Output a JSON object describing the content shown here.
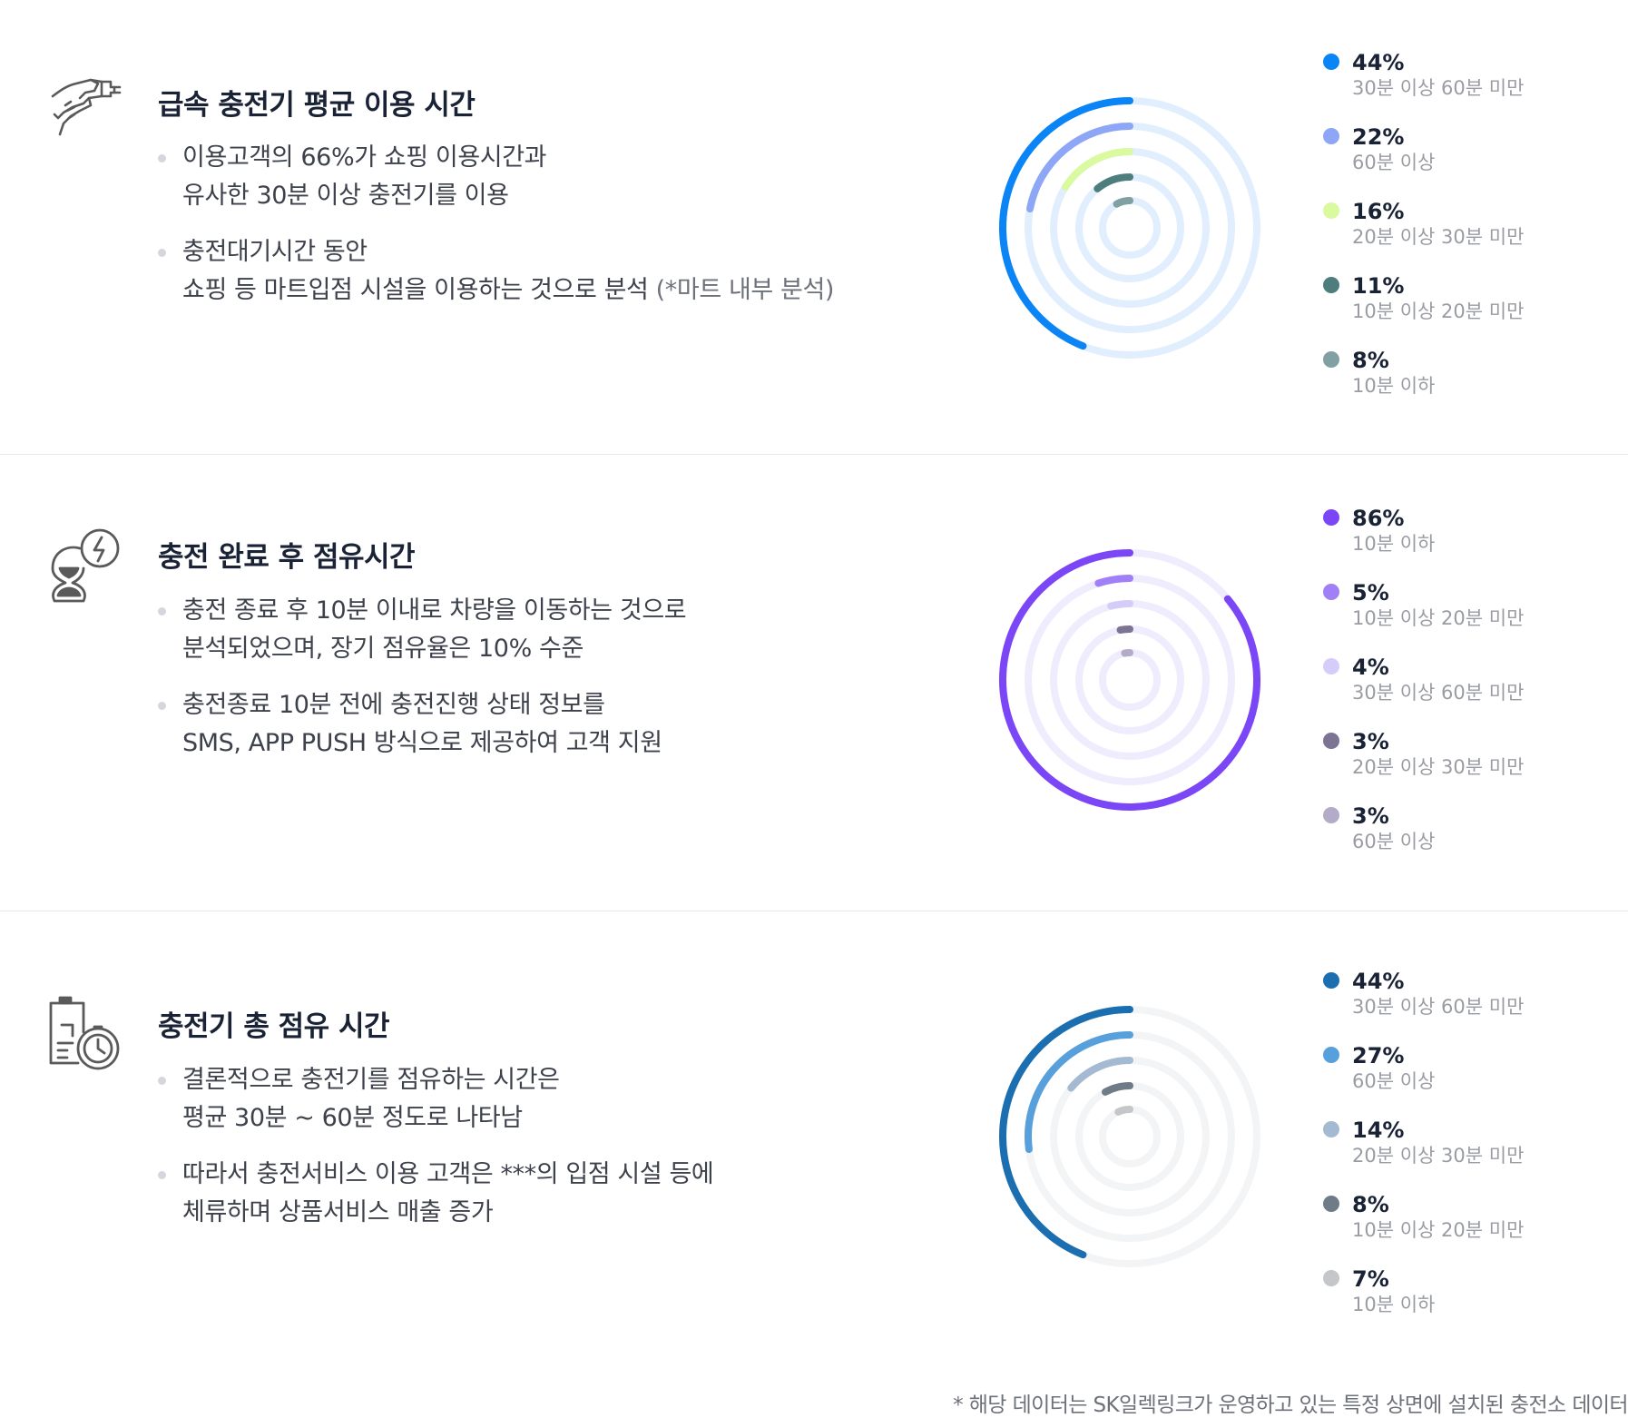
{
  "sections": [
    {
      "title": "급속 충전기 평균 이용 시간",
      "icon": "charging-plug-icon",
      "bullets": [
        {
          "lines": [
            "이용고객의 66%가 쇼핑 이용시간과",
            "유사한 30분 이상 충전기를 이용"
          ],
          "note": ""
        },
        {
          "lines": [
            "충전대기시간 동안",
            "쇼핑 등 마트입점 시설을 이용하는 것으로 분석"
          ],
          "note": "(*마트 내부 분석)"
        }
      ]
    },
    {
      "title": "충전 완료 후 점유시간",
      "icon": "hourglass-lightning-icon",
      "bullets": [
        {
          "lines": [
            "충전 종료 후 10분 이내로 차량을 이동하는 것으로",
            "분석되었으며, 장기 점유율은 10% 수준"
          ],
          "note": ""
        },
        {
          "lines": [
            "충전종료 10분 전에 충전진행 상태 정보를",
            "SMS, APP PUSH 방식으로 제공하여 고객 지원"
          ],
          "note": ""
        }
      ]
    },
    {
      "title": "충전기 총 점유 시간",
      "icon": "battery-clock-icon",
      "bullets": [
        {
          "lines": [
            "결론적으로 충전기를 점유하는 시간은",
            "평균 30분 ~ 60분 정도로 나타남"
          ],
          "note": ""
        },
        {
          "lines": [
            "따라서 충전서비스 이용 고객은 ***의 입점 시설 등에",
            "체류하며 상품서비스 매출 증가"
          ],
          "note": ""
        }
      ]
    }
  ],
  "chart_data": [
    {
      "type": "radial-bar",
      "title": "급속 충전기 평균 이용 시간",
      "track_color": "#e1eefd",
      "series": [
        {
          "value": 44,
          "label": "44%",
          "category": "30분 이상 60분 미만",
          "color": "#0b84f5"
        },
        {
          "value": 22,
          "label": "22%",
          "category": "60분 이상",
          "color": "#8ea6f6"
        },
        {
          "value": 16,
          "label": "16%",
          "category": "20분 이상 30분 미만",
          "color": "#d9fa9e"
        },
        {
          "value": 11,
          "label": "11%",
          "category": "10분 이상 20분 미만",
          "color": "#4e7d7e"
        },
        {
          "value": 8,
          "label": "8%",
          "category": "10분 이하",
          "color": "#80a0a3"
        }
      ]
    },
    {
      "type": "radial-bar",
      "title": "충전 완료 후 점유시간",
      "track_color": "#efecfd",
      "series": [
        {
          "value": 86,
          "label": "86%",
          "category": "10분 이하",
          "color": "#7b47f6"
        },
        {
          "value": 5,
          "label": "5%",
          "category": "10분 이상 20분 미만",
          "color": "#a17ff6"
        },
        {
          "value": 4,
          "label": "4%",
          "category": "30분 이상 60분 미만",
          "color": "#d6ccfa"
        },
        {
          "value": 3,
          "label": "3%",
          "category": "20분 이상 30분 미만",
          "color": "#7d7393"
        },
        {
          "value": 3,
          "label": "3%",
          "category": "60분 이상",
          "color": "#b3abc8"
        }
      ]
    },
    {
      "type": "radial-bar",
      "title": "충전기 총 점유 시간",
      "track_color": "#f3f4f5",
      "series": [
        {
          "value": 44,
          "label": "44%",
          "category": "30분 이상 60분 미만",
          "color": "#1b6fb0"
        },
        {
          "value": 27,
          "label": "27%",
          "category": "60분 이상",
          "color": "#58a0dc"
        },
        {
          "value": 14,
          "label": "14%",
          "category": "20분 이상 30분 미만",
          "color": "#a3bad2"
        },
        {
          "value": 8,
          "label": "8%",
          "category": "10분 이상 20분 미만",
          "color": "#707b88"
        },
        {
          "value": 7,
          "label": "7%",
          "category": "10분 이하",
          "color": "#c4c6c9"
        }
      ]
    }
  ],
  "footnote": "* 해당 데이터는 SK일렉링크가 운영하고 있는 특정 상면에 설치된 충전소 데이터"
}
